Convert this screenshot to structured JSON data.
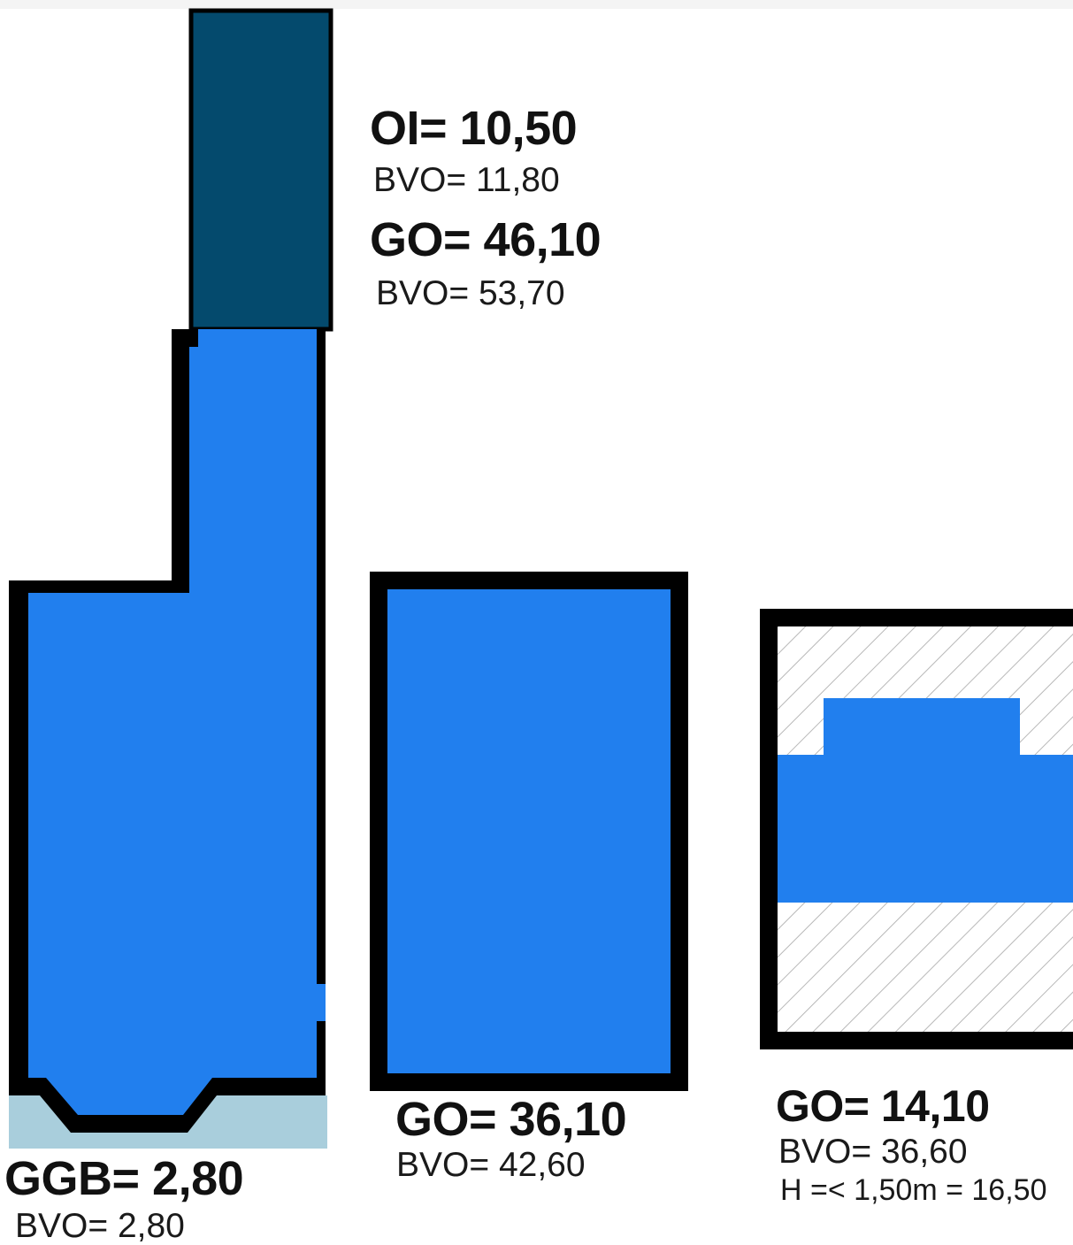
{
  "colors": {
    "main_fill": "#217fee",
    "top_fill": "#044a6d",
    "ggb_fill": "#a9cedc",
    "wall": "#000000",
    "hatch": "#b8b8b8"
  },
  "areas": {
    "oi": {
      "label": "OI= 10,50",
      "bvo": "BVO= 11,80"
    },
    "go_left": {
      "label": "GO= 46,10",
      "bvo": "BVO= 53,70"
    },
    "ggb": {
      "label": "GGB= 2,80",
      "bvo": "BVO= 2,80"
    },
    "go_middle": {
      "label": "GO= 36,10",
      "bvo": "BVO= 42,60"
    },
    "go_right": {
      "label": "GO= 14,10",
      "bvo": "BVO= 36,60",
      "note": "H =< 1,50m = 16,50"
    }
  }
}
